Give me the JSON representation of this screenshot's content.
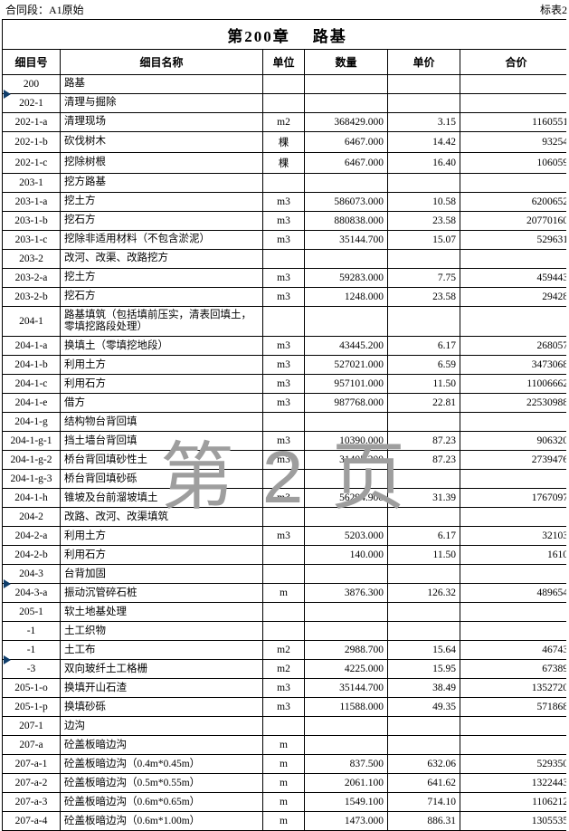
{
  "header": {
    "left": "合同段：A1原始",
    "right": "标表2"
  },
  "watermark": "第 2 页",
  "title": "第200章    路基",
  "columns": [
    "细目号",
    "细目名称",
    "单位",
    "数量",
    "单价",
    "合价"
  ],
  "wedges_after_rows": [
    0,
    25,
    29
  ],
  "rows": [
    {
      "code": "200",
      "name": "路基",
      "unit": "",
      "qty": "",
      "price": "",
      "total": ""
    },
    {
      "code": "202-1",
      "name": "清理与掘除",
      "unit": "",
      "qty": "",
      "price": "",
      "total": ""
    },
    {
      "code": "202-1-a",
      "name": "清理现场",
      "unit": "m2",
      "qty": "368429.000",
      "price": "3.15",
      "total": "1160551"
    },
    {
      "code": "202-1-b",
      "name": "砍伐树木",
      "unit": "棵",
      "qty": "6467.000",
      "price": "14.42",
      "total": "93254"
    },
    {
      "code": "202-1-c",
      "name": "挖除树根",
      "unit": "棵",
      "qty": "6467.000",
      "price": "16.40",
      "total": "106059"
    },
    {
      "code": "203-1",
      "name": "挖方路基",
      "unit": "",
      "qty": "",
      "price": "",
      "total": ""
    },
    {
      "code": "203-1-a",
      "name": "挖土方",
      "unit": "m3",
      "qty": "586073.000",
      "price": "10.58",
      "total": "6200652"
    },
    {
      "code": "203-1-b",
      "name": "挖石方",
      "unit": "m3",
      "qty": "880838.000",
      "price": "23.58",
      "total": "20770160"
    },
    {
      "code": "203-1-c",
      "name": "挖除非适用材料（不包含淤泥）",
      "unit": "m3",
      "qty": "35144.700",
      "price": "15.07",
      "total": "529631"
    },
    {
      "code": "203-2",
      "name": "改河、改渠、改路挖方",
      "unit": "",
      "qty": "",
      "price": "",
      "total": ""
    },
    {
      "code": "203-2-a",
      "name": "挖土方",
      "unit": "m3",
      "qty": "59283.000",
      "price": "7.75",
      "total": "459443"
    },
    {
      "code": "203-2-b",
      "name": "挖石方",
      "unit": "m3",
      "qty": "1248.000",
      "price": "23.58",
      "total": "29428"
    },
    {
      "code": "204-1",
      "name": "路基填筑（包括填前压实，清表回填土，零填挖路段处理）",
      "unit": "",
      "qty": "",
      "price": "",
      "total": ""
    },
    {
      "code": "204-1-a",
      "name": "换填土（零填挖地段）",
      "unit": "m3",
      "qty": "43445.200",
      "price": "6.17",
      "total": "268057"
    },
    {
      "code": "204-1-b",
      "name": "利用土方",
      "unit": "m3",
      "qty": "527021.000",
      "price": "6.59",
      "total": "3473068"
    },
    {
      "code": "204-1-c",
      "name": "利用石方",
      "unit": "m3",
      "qty": "957101.000",
      "price": "11.50",
      "total": "11006662"
    },
    {
      "code": "204-1-e",
      "name": "借方",
      "unit": "m3",
      "qty": "987768.000",
      "price": "22.81",
      "total": "22530988"
    },
    {
      "code": "204-1-g",
      "name": "结构物台背回填",
      "unit": "",
      "qty": "",
      "price": "",
      "total": ""
    },
    {
      "code": "204-1-g-1",
      "name": "挡土墙台背回填",
      "unit": "m3",
      "qty": "10390.000",
      "price": "87.23",
      "total": "906320"
    },
    {
      "code": "204-1-g-2",
      "name": "桥台背回填砂性土",
      "unit": "m3",
      "qty": "31405.200",
      "price": "87.23",
      "total": "2739476"
    },
    {
      "code": "204-1-g-3",
      "name": "桥台背回填砂砾",
      "unit": "",
      "qty": "",
      "price": "",
      "total": ""
    },
    {
      "code": "204-1-h",
      "name": "锥坡及台前溜坡填土",
      "unit": "m3",
      "qty": "56294.900",
      "price": "31.39",
      "total": "1767097"
    },
    {
      "code": "204-2",
      "name": "改路、改河、改渠填筑",
      "unit": "",
      "qty": "",
      "price": "",
      "total": ""
    },
    {
      "code": "204-2-a",
      "name": "利用土方",
      "unit": "m3",
      "qty": "5203.000",
      "price": "6.17",
      "total": "32103"
    },
    {
      "code": "204-2-b",
      "name": "利用石方",
      "unit": "",
      "qty": "140.000",
      "price": "11.50",
      "total": "1610"
    },
    {
      "code": "204-3",
      "name": "台背加固",
      "unit": "",
      "qty": "",
      "price": "",
      "total": ""
    },
    {
      "code": "204-3-a",
      "name": "振动沉管碎石桩",
      "unit": "m",
      "qty": "3876.300",
      "price": "126.32",
      "total": "489654"
    },
    {
      "code": "205-1",
      "name": "软土地基处理",
      "unit": "",
      "qty": "",
      "price": "",
      "total": ""
    },
    {
      "code": "-1",
      "name": "土工织物",
      "unit": "",
      "qty": "",
      "price": "",
      "total": ""
    },
    {
      "code": "-1",
      "name": "土工布",
      "unit": "m2",
      "qty": "2988.700",
      "price": "15.64",
      "total": "46743"
    },
    {
      "code": "-3",
      "name": "双向玻纤土工格栅",
      "unit": "m2",
      "qty": "4225.000",
      "price": "15.95",
      "total": "67389"
    },
    {
      "code": "205-1-o",
      "name": "换填开山石渣",
      "unit": "m3",
      "qty": "35144.700",
      "price": "38.49",
      "total": "1352720"
    },
    {
      "code": "205-1-p",
      "name": "换填砂砾",
      "unit": "m3",
      "qty": "11588.000",
      "price": "49.35",
      "total": "571868"
    },
    {
      "code": "207-1",
      "name": "边沟",
      "unit": "",
      "qty": "",
      "price": "",
      "total": ""
    },
    {
      "code": "207-a",
      "name": "砼盖板暗边沟",
      "unit": "m",
      "qty": "",
      "price": "",
      "total": ""
    },
    {
      "code": "207-a-1",
      "name": "砼盖板暗边沟（0.4m*0.45m）",
      "unit": "m",
      "qty": "837.500",
      "price": "632.06",
      "total": "529350"
    },
    {
      "code": "207-a-2",
      "name": "砼盖板暗边沟（0.5m*0.55m）",
      "unit": "m",
      "qty": "2061.100",
      "price": "641.62",
      "total": "1322443"
    },
    {
      "code": "207-a-3",
      "name": "砼盖板暗边沟（0.6m*0.65m）",
      "unit": "m",
      "qty": "1549.100",
      "price": "714.10",
      "total": "1106212"
    },
    {
      "code": "207-a-4",
      "name": "砼盖板暗边沟（0.6m*1.00m）",
      "unit": "m",
      "qty": "1473.000",
      "price": "886.31",
      "total": "1305535"
    }
  ],
  "colors": {
    "wedge": "#0e3d6b",
    "watermark": "#9e9e9e",
    "border": "#000000",
    "background": "#ffffff"
  }
}
